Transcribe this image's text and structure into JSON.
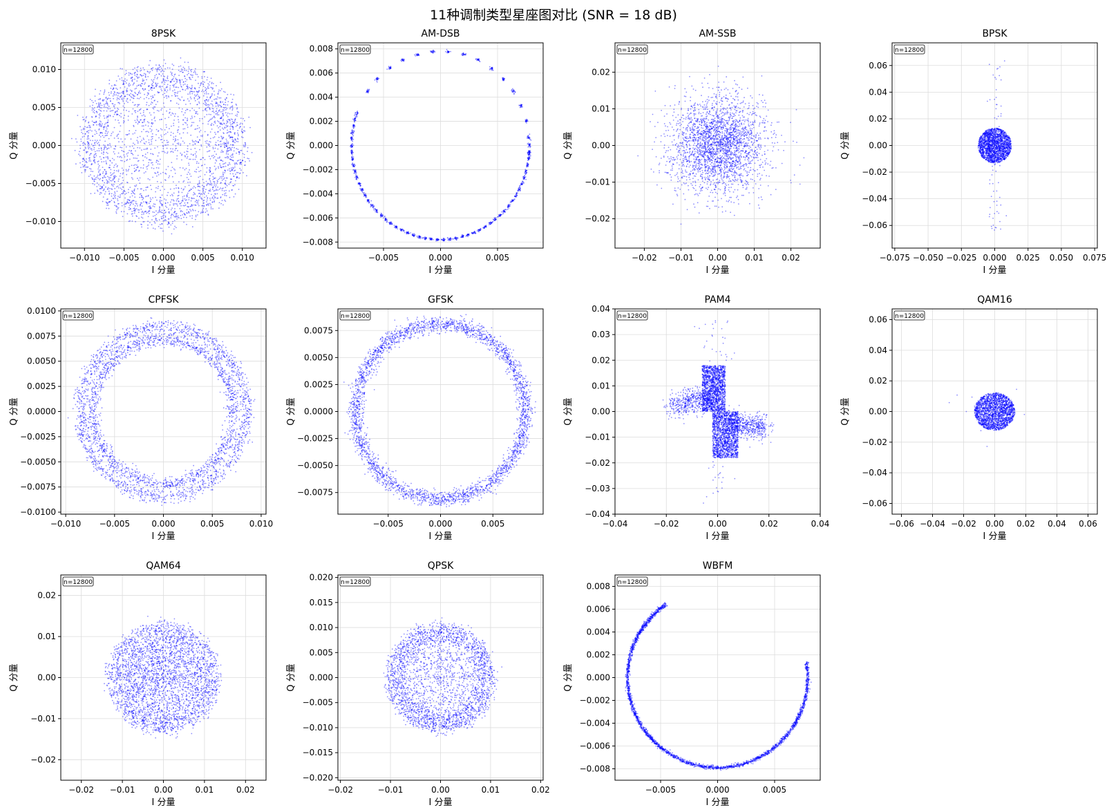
{
  "figure": {
    "title": "11种调制类型星座图对比 (SNR = 18 dB)",
    "marker_color": "#0000ff"
  },
  "chart_data": [
    {
      "type": "scatter",
      "title": "8PSK",
      "xlabel": "I 分量",
      "ylabel": "Q 分量",
      "n_label": "n=12800",
      "xlim": [
        -0.013,
        0.013
      ],
      "ylim": [
        -0.0135,
        0.0135
      ],
      "xticks": [
        -0.01,
        -0.005,
        0.0,
        0.005,
        0.01
      ],
      "xticklabels": [
        "−0.010",
        "−0.005",
        "0.000",
        "0.005",
        "0.010"
      ],
      "yticks": [
        -0.01,
        -0.005,
        0.0,
        0.005,
        0.01
      ],
      "yticklabels": [
        "−0.010",
        "−0.005",
        "0.000",
        "0.005",
        "0.010"
      ],
      "pattern": "disk",
      "r": 0.0105
    },
    {
      "type": "scatter",
      "title": "AM-DSB",
      "xlabel": "I 分量",
      "ylabel": "Q 分量",
      "n_label": "n=12800",
      "xlim": [
        -0.009,
        0.009
      ],
      "ylim": [
        -0.0085,
        0.0085
      ],
      "xticks": [
        -0.005,
        0.0,
        0.005
      ],
      "xticklabels": [
        "−0.005",
        "0.000",
        "0.005"
      ],
      "yticks": [
        -0.008,
        -0.006,
        -0.004,
        -0.002,
        0.0,
        0.002,
        0.004,
        0.006,
        0.008
      ],
      "yticklabels": [
        "−0.008",
        "−0.006",
        "−0.004",
        "−0.002",
        "0.000",
        "0.002",
        "0.004",
        "0.006",
        "0.008"
      ],
      "pattern": "clusters",
      "r": 0.0078
    },
    {
      "type": "scatter",
      "title": "AM-SSB",
      "xlabel": "I 分量",
      "ylabel": "Q 分量",
      "n_label": "n=12800",
      "xlim": [
        -0.028,
        0.028
      ],
      "ylim": [
        -0.028,
        0.028
      ],
      "xticks": [
        -0.02,
        -0.01,
        0.0,
        0.01,
        0.02
      ],
      "xticklabels": [
        "−0.02",
        "−0.01",
        "0.00",
        "0.01",
        "0.02"
      ],
      "yticks": [
        -0.02,
        -0.01,
        0.0,
        0.01,
        0.02
      ],
      "yticklabels": [
        "−0.02",
        "−0.01",
        "0.00",
        "0.01",
        "0.02"
      ],
      "pattern": "gauss",
      "sigma": 0.0065
    },
    {
      "type": "scatter",
      "title": "BPSK",
      "xlabel": "I 分量",
      "ylabel": "Q 分量",
      "n_label": "n=12800",
      "xlim": [
        -0.077,
        0.077
      ],
      "ylim": [
        -0.077,
        0.077
      ],
      "xticks": [
        -0.075,
        -0.05,
        -0.025,
        0.0,
        0.025,
        0.05,
        0.075
      ],
      "xticklabels": [
        "−0.075",
        "−0.050",
        "−0.025",
        "0.000",
        "0.025",
        "0.050",
        "0.075"
      ],
      "yticks": [
        -0.06,
        -0.04,
        -0.02,
        0.0,
        0.02,
        0.04,
        0.06
      ],
      "yticklabels": [
        "−0.06",
        "−0.04",
        "−0.02",
        "0.00",
        "0.02",
        "0.04",
        "0.06"
      ],
      "pattern": "blob_vert",
      "r": 0.0125
    },
    {
      "type": "scatter",
      "title": "CPFSK",
      "xlabel": "I 分量",
      "ylabel": "Q 分量",
      "n_label": "n=12800",
      "xlim": [
        -0.0105,
        0.0105
      ],
      "ylim": [
        -0.0102,
        0.0102
      ],
      "xticks": [
        -0.01,
        -0.005,
        0.0,
        0.005,
        0.01
      ],
      "xticklabels": [
        "−0.010",
        "−0.005",
        "0.000",
        "0.005",
        "0.010"
      ],
      "yticks": [
        -0.01,
        -0.0075,
        -0.005,
        -0.0025,
        0.0,
        0.0025,
        0.005,
        0.0075,
        0.01
      ],
      "yticklabels": [
        "−0.0100",
        "−0.0075",
        "−0.0050",
        "−0.0025",
        "0.0000",
        "0.0025",
        "0.0050",
        "0.0075",
        "0.0100"
      ],
      "pattern": "double_ring",
      "r1": 0.0072,
      "r2": 0.0085
    },
    {
      "type": "scatter",
      "title": "GFSK",
      "xlabel": "I 分量",
      "ylabel": "Q 分量",
      "n_label": "n=12800",
      "xlim": [
        -0.0098,
        0.0098
      ],
      "ylim": [
        -0.0095,
        0.0095
      ],
      "xticks": [
        -0.005,
        0.0,
        0.005
      ],
      "xticklabels": [
        "−0.005",
        "0.000",
        "0.005"
      ],
      "yticks": [
        -0.0075,
        -0.005,
        -0.0025,
        0.0,
        0.0025,
        0.005,
        0.0075
      ],
      "yticklabels": [
        "−0.0075",
        "−0.0050",
        "−0.0025",
        "0.0000",
        "0.0025",
        "0.0050",
        "0.0075"
      ],
      "pattern": "ring",
      "r": 0.0081
    },
    {
      "type": "scatter",
      "title": "PAM4",
      "xlabel": "I 分量",
      "ylabel": "Q 分量",
      "n_label": "n=12800",
      "xlim": [
        -0.04,
        0.04
      ],
      "ylim": [
        -0.04,
        0.04
      ],
      "xticks": [
        -0.04,
        -0.02,
        0.0,
        0.02,
        0.04
      ],
      "xticklabels": [
        "−0.04",
        "−0.02",
        "0.00",
        "0.02",
        "0.04"
      ],
      "yticks": [
        -0.04,
        -0.03,
        -0.02,
        -0.01,
        0.0,
        0.01,
        0.02,
        0.03,
        0.04
      ],
      "yticklabels": [
        "−0.04",
        "−0.03",
        "−0.02",
        "−0.01",
        "0.00",
        "0.01",
        "0.02",
        "0.03",
        "0.04"
      ],
      "pattern": "pam"
    },
    {
      "type": "scatter",
      "title": "QAM16",
      "xlabel": "I 分量",
      "ylabel": "Q 分量",
      "n_label": "n=12800",
      "xlim": [
        -0.066,
        0.066
      ],
      "ylim": [
        -0.067,
        0.067
      ],
      "xticks": [
        -0.06,
        -0.04,
        -0.02,
        0.0,
        0.02,
        0.04,
        0.06
      ],
      "xticklabels": [
        "−0.06",
        "−0.04",
        "−0.02",
        "0.00",
        "0.02",
        "0.04",
        "0.06"
      ],
      "yticks": [
        -0.06,
        -0.04,
        -0.02,
        0.0,
        0.02,
        0.04,
        0.06
      ],
      "yticklabels": [
        "−0.06",
        "−0.04",
        "−0.02",
        "0.00",
        "0.02",
        "0.04",
        "0.06"
      ],
      "pattern": "blob_sparse",
      "r": 0.013
    },
    {
      "type": "scatter",
      "title": "QAM64",
      "xlabel": "I 分量",
      "ylabel": "Q 分量",
      "n_label": "n=12800",
      "xlim": [
        -0.025,
        0.025
      ],
      "ylim": [
        -0.025,
        0.025
      ],
      "xticks": [
        -0.02,
        -0.01,
        0.0,
        0.01,
        0.02
      ],
      "xticklabels": [
        "−0.02",
        "−0.01",
        "0.00",
        "0.01",
        "0.02"
      ],
      "yticks": [
        -0.02,
        -0.01,
        0.0,
        0.01,
        0.02
      ],
      "yticklabels": [
        "−0.02",
        "−0.01",
        "0.00",
        "0.01",
        "0.02"
      ],
      "pattern": "disk_dense",
      "r": 0.0135
    },
    {
      "type": "scatter",
      "title": "QPSK",
      "xlabel": "I 分量",
      "ylabel": "Q 分量",
      "n_label": "n=12800",
      "xlim": [
        -0.0205,
        0.0205
      ],
      "ylim": [
        -0.0205,
        0.0205
      ],
      "xticks": [
        -0.02,
        -0.01,
        0.0,
        0.01,
        0.02
      ],
      "xticklabels": [
        "−0.02",
        "−0.01",
        "0.00",
        "0.01",
        "0.02"
      ],
      "yticks": [
        -0.02,
        -0.015,
        -0.01,
        -0.005,
        0.0,
        0.005,
        0.01,
        0.015,
        0.02
      ],
      "yticklabels": [
        "−0.020",
        "−0.015",
        "−0.010",
        "−0.005",
        "0.000",
        "0.005",
        "0.010",
        "0.015",
        "0.020"
      ],
      "pattern": "disk",
      "r": 0.0108
    },
    {
      "type": "scatter",
      "title": "WBFM",
      "xlabel": "I 分量",
      "ylabel": "Q 分量",
      "n_label": "n=12800",
      "xlim": [
        -0.009,
        0.009
      ],
      "ylim": [
        -0.009,
        0.009
      ],
      "xticks": [
        -0.005,
        0.0,
        0.005
      ],
      "xticklabels": [
        "−0.005",
        "0.000",
        "0.005"
      ],
      "yticks": [
        -0.008,
        -0.006,
        -0.004,
        -0.002,
        0.0,
        0.002,
        0.004,
        0.006,
        0.008
      ],
      "yticklabels": [
        "−0.008",
        "−0.006",
        "−0.004",
        "−0.002",
        "0.000",
        "0.002",
        "0.004",
        "0.006",
        "0.008"
      ],
      "pattern": "arc",
      "r": 0.0079
    }
  ]
}
